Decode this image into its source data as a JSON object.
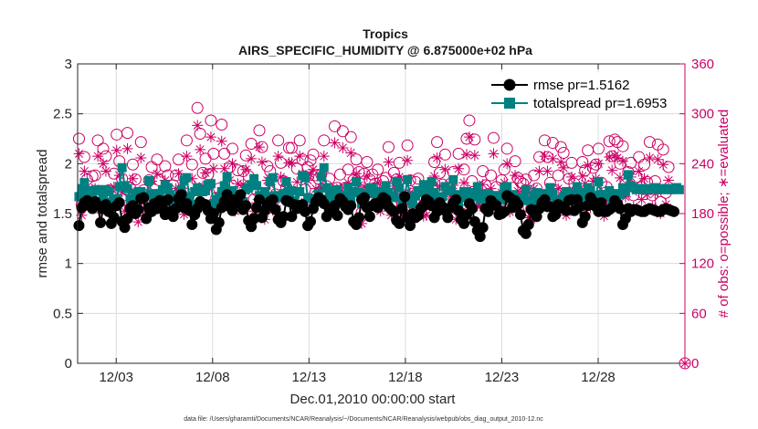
{
  "chart_data": {
    "type": "line",
    "title": "Tropics",
    "subtitle": "AIRS_SPECIFIC_HUMIDITY @ 6.875000e+02 hPa",
    "xlabel": "Dec.01,2010 00:00:00 start",
    "ylabel": "rmse and totalspread",
    "ylabel_right": "# of obs: o=possible; ∗=evaluated",
    "footnote": "data file: /Users/gharamti/Documents/NCAR/Reanalysis/~/Documents/NCAR/Reanalysis/webpub/obs_diag_output_2010-12.nc",
    "xlim": [
      1,
      32.5
    ],
    "ylim": [
      0,
      3
    ],
    "ylim_right": [
      0,
      360
    ],
    "x_ticks": [
      3,
      8,
      13,
      18,
      23,
      28
    ],
    "x_tick_labels": [
      "12/03",
      "12/08",
      "12/13",
      "12/18",
      "12/23",
      "12/28"
    ],
    "y_ticks": [
      0,
      0.5,
      1,
      1.5,
      2,
      2.5,
      3
    ],
    "y_tick_labels": [
      "0",
      "0.5",
      "1",
      "1.5",
      "2",
      "2.5",
      "3"
    ],
    "y_ticks_right": [
      0,
      60,
      120,
      180,
      240,
      300,
      360
    ],
    "y_tick_labels_right": [
      "0",
      "60",
      "120",
      "180",
      "240",
      "300",
      "360"
    ],
    "colors": {
      "rmse": "#000000",
      "spread": "#008080",
      "obs": "#cc0066",
      "grid": "#dcdcdc",
      "axis": "#262626"
    },
    "legend": [
      {
        "series": "rmse",
        "label": "rmse pr=1.5162"
      },
      {
        "series": "spread",
        "label": "totalspread pr=1.6953"
      }
    ],
    "series": [
      {
        "name": "rmse",
        "axis": "left",
        "values": [
          1.38,
          1.56,
          1.61,
          1.63,
          1.58,
          1.55,
          1.62,
          1.58,
          1.41,
          1.55,
          1.59,
          1.52,
          1.4,
          1.46,
          1.58,
          1.61,
          1.42,
          1.36,
          1.45,
          1.55,
          1.58,
          1.5,
          1.54,
          1.65,
          1.66,
          1.45,
          1.56,
          1.52,
          1.6,
          1.55,
          1.63,
          1.57,
          1.49,
          1.64,
          1.52,
          1.47,
          1.55,
          1.65,
          1.69,
          1.56,
          1.6,
          1.53,
          1.39,
          1.49,
          1.55,
          1.62,
          1.6,
          1.59,
          1.53,
          1.45,
          1.5,
          1.34,
          1.41,
          1.56,
          1.62,
          1.69,
          1.57,
          1.53,
          1.64,
          1.61,
          1.69,
          1.54,
          1.58,
          1.43,
          1.37,
          1.45,
          1.56,
          1.64,
          1.46,
          1.53,
          1.58,
          1.62,
          1.64,
          1.54,
          1.44,
          1.41,
          1.47,
          1.63,
          1.62,
          1.47,
          1.59,
          1.55,
          1.58,
          1.59,
          1.52,
          1.38,
          1.42,
          1.55,
          1.62,
          1.66,
          1.64,
          1.6,
          1.47,
          1.54,
          1.54,
          1.58,
          1.48,
          1.65,
          1.62,
          1.57,
          1.54,
          1.58,
          1.42,
          1.39,
          1.46,
          1.64,
          1.66,
          1.56,
          1.47,
          1.58,
          1.6,
          1.56,
          1.62,
          1.66,
          1.64,
          1.57,
          1.54,
          1.52,
          1.43,
          1.4,
          1.55,
          1.67,
          1.46,
          1.38,
          1.5,
          1.46,
          1.48,
          1.55,
          1.58,
          1.64,
          1.62,
          1.58,
          1.46,
          1.52,
          1.61,
          1.57,
          1.53,
          1.46,
          1.56,
          1.61,
          1.64,
          1.53,
          1.44,
          1.4,
          1.49,
          1.6,
          1.55,
          1.42,
          1.33,
          1.27,
          1.36,
          1.55,
          1.52,
          1.63,
          1.6,
          1.58,
          1.49,
          1.5,
          1.52,
          1.68,
          1.66,
          1.56,
          1.63,
          1.59,
          1.49,
          1.33,
          1.3,
          1.39,
          1.54,
          1.51,
          1.47,
          1.55,
          1.61,
          1.64,
          1.57,
          1.57,
          1.47,
          1.49,
          1.59,
          1.57,
          1.55,
          1.53,
          1.63,
          1.64,
          1.53,
          1.64,
          1.57,
          1.41,
          1.47,
          1.58,
          1.66,
          1.62,
          1.57,
          1.52,
          1.61,
          1.52,
          1.52,
          1.54,
          1.56,
          1.63,
          1.6,
          1.55,
          1.39,
          1.45,
          1.55,
          1.52,
          1.54,
          1.54,
          1.53,
          1.52,
          1.52,
          1.54,
          1.55,
          1.54,
          1.53,
          1.52,
          1.52,
          1.54,
          1.55,
          1.54,
          1.53,
          1.52
        ]
      },
      {
        "name": "totalspread",
        "axis": "left",
        "values": [
          1.67,
          1.75,
          1.81,
          1.73,
          1.67,
          1.67,
          1.73,
          1.74,
          1.62,
          1.68,
          1.74,
          1.72,
          1.61,
          1.63,
          1.65,
          1.77,
          1.96,
          1.78,
          1.75,
          1.65,
          1.61,
          1.7,
          1.72,
          1.72,
          1.66,
          1.68,
          1.83,
          1.69,
          1.63,
          1.7,
          1.65,
          1.74,
          1.79,
          1.76,
          1.69,
          1.62,
          1.63,
          1.65,
          1.74,
          1.83,
          1.86,
          1.67,
          1.59,
          1.72,
          1.76,
          1.72,
          1.72,
          1.73,
          1.79,
          1.8,
          1.6,
          1.64,
          1.66,
          1.72,
          1.78,
          1.87,
          1.68,
          1.73,
          1.69,
          1.69,
          1.66,
          1.62,
          1.74,
          1.76,
          1.79,
          1.85,
          1.78,
          1.68,
          1.68,
          1.72,
          1.67,
          1.82,
          1.86,
          1.68,
          1.66,
          1.68,
          1.7,
          1.82,
          1.72,
          1.73,
          1.63,
          1.59,
          1.72,
          1.88,
          1.86,
          1.66,
          1.65,
          1.64,
          1.65,
          1.7,
          1.87,
          1.96,
          1.76,
          1.68,
          1.64,
          1.73,
          1.74,
          1.62,
          1.61,
          1.68,
          1.76,
          1.66,
          1.72,
          1.82,
          1.71,
          1.6,
          1.66,
          1.7,
          1.75,
          1.76,
          1.7,
          1.65,
          1.72,
          1.72,
          1.78,
          1.71,
          1.66,
          1.67,
          1.82,
          1.76,
          1.63,
          1.67,
          1.84,
          1.65,
          1.6,
          1.68,
          1.73,
          1.71,
          1.79,
          1.73,
          1.76,
          1.82,
          1.71,
          1.64,
          1.6,
          1.67,
          1.77,
          1.73,
          1.73,
          1.84,
          1.69,
          1.58,
          1.66,
          1.72,
          1.72,
          1.65,
          1.67,
          1.71,
          1.77,
          1.64,
          1.69,
          1.66,
          1.7,
          1.62,
          1.65,
          1.68,
          1.68,
          1.64,
          1.76,
          1.77,
          1.64,
          1.69,
          1.66,
          1.65,
          1.64,
          1.66,
          1.74,
          1.63,
          1.63,
          1.67,
          1.71,
          1.59,
          1.63,
          1.7,
          1.68,
          1.76,
          1.7,
          1.63,
          1.6,
          1.64,
          1.67,
          1.72,
          1.65,
          1.65,
          1.7,
          1.77,
          1.7,
          1.71,
          1.65,
          1.76,
          1.73,
          1.65,
          1.68,
          1.82,
          1.69,
          1.69,
          1.68,
          1.73,
          1.63,
          1.64,
          1.7,
          1.69,
          1.76,
          1.72,
          1.89,
          1.78,
          1.76,
          1.74,
          1.75,
          1.75,
          1.74,
          1.74,
          1.75,
          1.75,
          1.76,
          1.74,
          1.74,
          1.75,
          1.75,
          1.74,
          1.74,
          1.75,
          1.76,
          1.74
        ]
      },
      {
        "name": "obs_possible",
        "axis": "right",
        "marker": "circle",
        "values": [
          270,
          191,
          248,
          221,
          202,
          225,
          226,
          268,
          199,
          258,
          249,
          208,
          201,
          228,
          275,
          243,
          222,
          197,
          277,
          211,
          239,
          221,
          183,
          266,
          208,
          190,
          220,
          236,
          198,
          245,
          220,
          201,
          237,
          226,
          198,
          214,
          226,
          245,
          204,
          193,
          268,
          216,
          239,
          198,
          307,
          276,
          229,
          246,
          227,
          292,
          252,
          199,
          210,
          287,
          252,
          207,
          236,
          258,
          197,
          232,
          207,
          231,
          250,
          225,
          264,
          197,
          208,
          280,
          260,
          186,
          237,
          231,
          198,
          203,
          268,
          241,
          219,
          212,
          259,
          259,
          204,
          234,
          268,
          245,
          209,
          236,
          244,
          251,
          226,
          222,
          227,
          268,
          213,
          222,
          200,
          285,
          211,
          227,
          279,
          211,
          233,
          272,
          220,
          245,
          230,
          181,
          228,
          242,
          221,
          227,
          216,
          233,
          197,
          219,
          223,
          260,
          191,
          229,
          221,
          241,
          192,
          202,
          262,
          220,
          204,
          218,
          222,
          202,
          190,
          191,
          206,
          211,
          242,
          266,
          229,
          215,
          251,
          198,
          216,
          230,
          186,
          252,
          196,
          233,
          270,
          292,
          219,
          269,
          203,
          203,
          231,
          214,
          197,
          226,
          271,
          212,
          194,
          220,
          233,
          258,
          196,
          211,
          243,
          223,
          218,
          216,
          221,
          188,
          186,
          226,
          210,
          248,
          202,
          268,
          248,
          217,
          265,
          208,
          226,
          260,
          253,
          191,
          222,
          241,
          216,
          208,
          198,
          242,
          232,
          256,
          201,
          235,
          239,
          258,
          217,
          190,
          212,
          267,
          249,
          269,
          266,
          240,
          261,
          215,
          230,
          241,
          202,
          224,
          248,
          212,
          239,
          218,
          266,
          202,
          219,
          263,
          194,
          257,
          205,
          236
        ]
      },
      {
        "name": "obs_evaluated",
        "axis": "right",
        "marker": "star",
        "values": [
          252,
          178,
          231,
          206,
          188,
          209,
          210,
          249,
          185,
          240,
          231,
          193,
          187,
          212,
          256,
          226,
          206,
          183,
          258,
          196,
          222,
          206,
          170,
          247,
          193,
          177,
          205,
          219,
          184,
          228,
          205,
          187,
          220,
          210,
          184,
          199,
          210,
          228,
          190,
          179,
          249,
          201,
          222,
          184,
          286,
          257,
          213,
          229,
          211,
          272,
          234,
          185,
          195,
          267,
          234,
          193,
          220,
          240,
          183,
          216,
          193,
          215,
          233,
          209,
          246,
          183,
          193,
          260,
          242,
          173,
          220,
          215,
          184,
          189,
          249,
          224,
          204,
          197,
          241,
          241,
          190,
          218,
          249,
          228,
          194,
          220,
          227,
          233,
          210,
          206,
          211,
          249,
          198,
          206,
          186,
          265,
          196,
          211,
          259,
          196,
          217,
          253,
          205,
          228,
          214,
          168,
          212,
          225,
          206,
          211,
          201,
          217,
          183,
          204,
          207,
          242,
          178,
          213,
          206,
          224,
          179,
          188,
          244,
          205,
          190,
          203,
          206,
          188,
          177,
          178,
          192,
          196,
          225,
          247,
          213,
          200,
          233,
          184,
          201,
          214,
          173,
          234,
          182,
          217,
          251,
          272,
          204,
          250,
          189,
          189,
          215,
          199,
          183,
          210,
          252,
          197,
          180,
          205,
          217,
          240,
          182,
          196,
          226,
          207,
          203,
          201,
          206,
          175,
          173,
          210,
          195,
          231,
          188,
          249,
          231,
          202,
          246,
          193,
          210,
          242,
          235,
          178,
          206,
          224,
          201,
          193,
          184,
          225,
          216,
          238,
          187,
          219,
          222,
          240,
          202,
          177,
          197,
          248,
          232,
          250,
          247,
          223,
          243,
          200,
          214,
          224,
          188,
          208,
          231,
          197,
          222,
          203,
          247,
          188,
          204,
          245,
          180,
          239,
          191,
          220
        ]
      }
    ]
  }
}
